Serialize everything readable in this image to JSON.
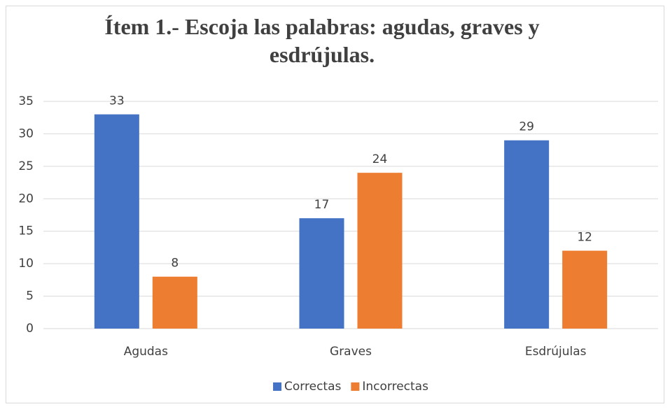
{
  "chart_data": {
    "type": "bar",
    "title": "Ítem 1.- Escoja las palabras: agudas, graves y esdrújulas.",
    "categories": [
      "Agudas",
      "Graves",
      "Esdrújulas"
    ],
    "series": [
      {
        "name": "Correctas",
        "color": "#4472c4",
        "values": [
          33,
          17,
          29
        ]
      },
      {
        "name": "Incorrectas",
        "color": "#ed7d31",
        "values": [
          8,
          24,
          12
        ]
      }
    ],
    "ylim": [
      0,
      35
    ],
    "yticks": [
      0,
      5,
      10,
      15,
      20,
      25,
      30,
      35
    ],
    "grid": true,
    "legend": "bottom"
  }
}
